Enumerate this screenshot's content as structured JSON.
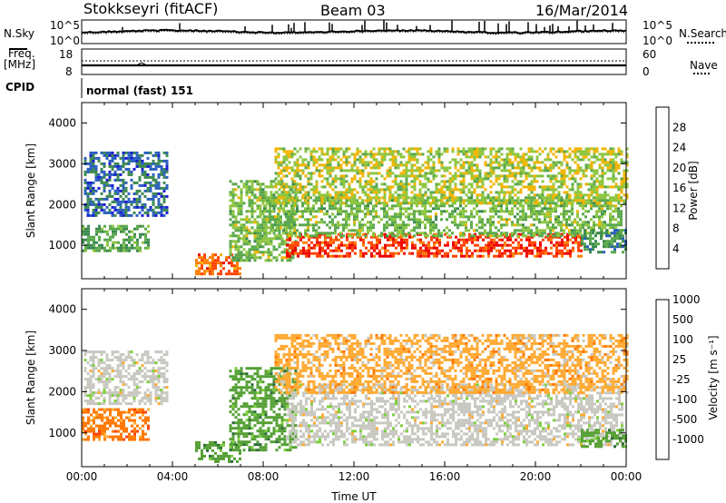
{
  "header": {
    "station": "Stokkseyri (fitACF)",
    "beam": "Beam 03",
    "date": "16/Mar/2014"
  },
  "top_panels": {
    "nsky_label": "N.Sky",
    "nsky_top": "10^5",
    "nsky_bottom": "10^0",
    "nsearch_label": "N.Search",
    "nsearch_top": "10^5",
    "nsearch_bottom": "10^0",
    "freq_label_1": "Freq.",
    "freq_label_2": "[MHz]",
    "freq_top": "18",
    "freq_bottom": "8",
    "nave_label": "Nave",
    "nave_top": "60",
    "nave_bottom": "0",
    "cpid_label": "CPID",
    "cpid_value": "normal (fast) 151"
  },
  "colors": {
    "power_scale": [
      "#1a1ad6",
      "#2b5fbf",
      "#3c8a4f",
      "#5aa84c",
      "#8dc63f",
      "#f2b400",
      "#ff7f00",
      "#ff4400",
      "#ee0000"
    ],
    "velocity_scale": [
      "#2233bb",
      "#2e6b3a",
      "#55a035",
      "#7ccf3a",
      "#c8c8c0",
      "#ffaa33",
      "#ff7700",
      "#ff4400",
      "#ee0000"
    ],
    "ground_scatter": "#c8c8c0"
  },
  "chart_data": [
    {
      "type": "heatmap",
      "title": "",
      "ylabel": "Slant Range [km]",
      "xlabel": "",
      "x_ticks": [
        "00:00",
        "04:00",
        "08:00",
        "12:00",
        "16:00",
        "20:00",
        "00:00"
      ],
      "y_ticks": [
        1000,
        2000,
        3000,
        4000
      ],
      "ylim": [
        180,
        4500
      ],
      "xlim_hours": [
        0,
        24
      ],
      "colorbar": {
        "label": "Power [dB]",
        "ticks": [
          4,
          8,
          12,
          16,
          20,
          24,
          28
        ],
        "range": [
          0,
          32
        ]
      },
      "regions": [
        {
          "t": [
            0.0,
            3.0
          ],
          "r": [
            850,
            1500
          ],
          "v": 11
        },
        {
          "t": [
            0.1,
            3.8
          ],
          "r": [
            1700,
            3300
          ],
          "v": 5
        },
        {
          "t": [
            5.0,
            7.0
          ],
          "r": [
            300,
            800
          ],
          "v": 26
        },
        {
          "t": [
            6.5,
            9.5
          ],
          "r": [
            600,
            2600
          ],
          "v": 14
        },
        {
          "t": [
            9.0,
            22.0
          ],
          "r": [
            700,
            1300
          ],
          "v": 29
        },
        {
          "t": [
            8.0,
            23.8
          ],
          "r": [
            1200,
            2200
          ],
          "v": 14
        },
        {
          "t": [
            8.5,
            24.0
          ],
          "r": [
            2000,
            3400
          ],
          "v": 17
        },
        {
          "t": [
            22.0,
            24.0
          ],
          "r": [
            800,
            1400
          ],
          "v": 9
        }
      ]
    },
    {
      "type": "heatmap",
      "title": "",
      "ylabel": "Slant Range [km]",
      "xlabel": "Time UT",
      "x_ticks": [
        "00:00",
        "04:00",
        "08:00",
        "12:00",
        "16:00",
        "20:00",
        "00:00"
      ],
      "y_ticks": [
        1000,
        2000,
        3000,
        4000
      ],
      "ylim": [
        180,
        4500
      ],
      "xlim_hours": [
        0,
        24
      ],
      "colorbar": {
        "label": "Velocity [m s⁻¹]",
        "ticks": [
          1000,
          500,
          100,
          25,
          -25,
          -100,
          -500,
          -1000
        ]
      },
      "regions": [
        {
          "t": [
            0.0,
            3.0
          ],
          "r": [
            850,
            1600
          ],
          "v": -400
        },
        {
          "t": [
            0.1,
            3.8
          ],
          "r": [
            1700,
            3000
          ],
          "v": 0
        },
        {
          "t": [
            5.0,
            7.0
          ],
          "r": [
            300,
            800
          ],
          "v": 150
        },
        {
          "t": [
            6.5,
            9.5
          ],
          "r": [
            600,
            2600
          ],
          "v": 200
        },
        {
          "t": [
            9.0,
            23.8
          ],
          "r": [
            700,
            2200
          ],
          "v": 0
        },
        {
          "t": [
            8.5,
            24.0
          ],
          "r": [
            2000,
            3400
          ],
          "v": -60
        },
        {
          "t": [
            22.0,
            24.0
          ],
          "r": [
            700,
            1100
          ],
          "v": 200
        }
      ]
    }
  ]
}
